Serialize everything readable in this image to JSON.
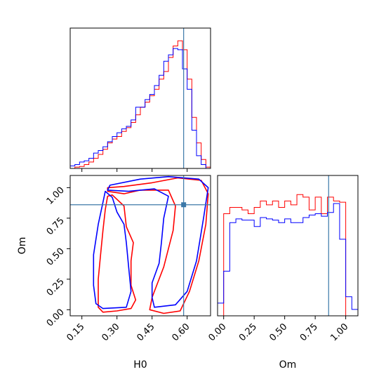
{
  "chart_data": {
    "type": "corner",
    "parameters": [
      "H0",
      "Om"
    ],
    "truth": {
      "H0": 0.585,
      "Om": 0.86
    },
    "colors": {
      "series_a": "#ff0000",
      "series_b": "#0000ff",
      "truth": "#3b78a8"
    },
    "panels": [
      {
        "id": "hist-H0",
        "type": "histogram",
        "xlim": [
          0.1,
          0.7
        ],
        "xticks": [
          0.15,
          0.3,
          0.45,
          0.6
        ],
        "bins": [
          0.1,
          0.12,
          0.14,
          0.16,
          0.18,
          0.2,
          0.22,
          0.24,
          0.26,
          0.28,
          0.3,
          0.32,
          0.34,
          0.36,
          0.38,
          0.4,
          0.42,
          0.44,
          0.46,
          0.48,
          0.5,
          0.52,
          0.54,
          0.56,
          0.58,
          0.6,
          0.62,
          0.64,
          0.66,
          0.68,
          0.7
        ],
        "series": [
          {
            "color": "#ff0000",
            "values": [
              0.0,
              0.01,
              0.015,
              0.03,
              0.05,
              0.08,
              0.11,
              0.15,
              0.2,
              0.23,
              0.25,
              0.29,
              0.32,
              0.36,
              0.42,
              0.48,
              0.52,
              0.57,
              0.62,
              0.7,
              0.76,
              0.87,
              0.96,
              1.0,
              0.93,
              0.7,
              0.4,
              0.2,
              0.07,
              0.01
            ]
          },
          {
            "color": "#0000ff",
            "values": [
              0.02,
              0.03,
              0.05,
              0.06,
              0.08,
              0.12,
              0.14,
              0.17,
              0.21,
              0.25,
              0.28,
              0.31,
              0.33,
              0.38,
              0.48,
              0.48,
              0.54,
              0.58,
              0.65,
              0.73,
              0.84,
              0.89,
              0.94,
              0.93,
              0.78,
              0.62,
              0.3,
              0.1,
              0.03,
              0.0
            ]
          }
        ]
      },
      {
        "id": "contour-H0-Om",
        "type": "contour2d",
        "xlim": [
          0.1,
          0.7
        ],
        "ylim": [
          -0.05,
          1.1
        ],
        "xticks": [
          0.15,
          0.3,
          0.45,
          0.6
        ],
        "yticks": [
          0.0,
          0.25,
          0.5,
          0.75,
          1.0
        ],
        "xlabel": "H0",
        "ylabel": "Om",
        "contours": [
          {
            "color": "#ff0000",
            "points": [
              [
                0.22,
                0.02
              ],
              [
                0.24,
                -0.02
              ],
              [
                0.3,
                -0.01
              ],
              [
                0.36,
                0.01
              ],
              [
                0.38,
                0.08
              ],
              [
                0.36,
                0.2
              ],
              [
                0.36,
                0.4
              ],
              [
                0.37,
                0.55
              ],
              [
                0.34,
                0.68
              ],
              [
                0.33,
                0.85
              ],
              [
                0.28,
                0.94
              ],
              [
                0.26,
                0.93
              ],
              [
                0.25,
                0.82
              ],
              [
                0.24,
                0.65
              ],
              [
                0.23,
                0.45
              ],
              [
                0.22,
                0.25
              ],
              [
                0.22,
                0.02
              ]
            ]
          },
          {
            "color": "#ff0000",
            "points": [
              [
                0.44,
                0.0
              ],
              [
                0.5,
                -0.03
              ],
              [
                0.57,
                -0.01
              ],
              [
                0.61,
                0.15
              ],
              [
                0.65,
                0.4
              ],
              [
                0.68,
                0.7
              ],
              [
                0.69,
                0.95
              ],
              [
                0.66,
                1.06
              ],
              [
                0.56,
                1.08
              ],
              [
                0.45,
                1.04
              ],
              [
                0.33,
                1.01
              ],
              [
                0.26,
                1.0
              ],
              [
                0.26,
                0.97
              ],
              [
                0.33,
                0.95
              ],
              [
                0.4,
                0.98
              ],
              [
                0.52,
                0.98
              ],
              [
                0.55,
                0.85
              ],
              [
                0.54,
                0.65
              ],
              [
                0.52,
                0.5
              ],
              [
                0.5,
                0.35
              ],
              [
                0.47,
                0.2
              ],
              [
                0.45,
                0.1
              ],
              [
                0.44,
                0.0
              ]
            ]
          },
          {
            "color": "#0000ff",
            "points": [
              [
                0.21,
                0.05
              ],
              [
                0.24,
                0.01
              ],
              [
                0.34,
                0.02
              ],
              [
                0.36,
                0.15
              ],
              [
                0.35,
                0.35
              ],
              [
                0.34,
                0.55
              ],
              [
                0.33,
                0.7
              ],
              [
                0.3,
                0.8
              ],
              [
                0.28,
                0.92
              ],
              [
                0.25,
                0.97
              ],
              [
                0.24,
                0.88
              ],
              [
                0.22,
                0.7
              ],
              [
                0.2,
                0.45
              ],
              [
                0.2,
                0.2
              ],
              [
                0.21,
                0.05
              ]
            ]
          },
          {
            "color": "#0000ff",
            "points": [
              [
                0.46,
                0.02
              ],
              [
                0.55,
                0.04
              ],
              [
                0.6,
                0.15
              ],
              [
                0.64,
                0.4
              ],
              [
                0.67,
                0.75
              ],
              [
                0.69,
                1.0
              ],
              [
                0.65,
                1.07
              ],
              [
                0.52,
                1.09
              ],
              [
                0.4,
                1.07
              ],
              [
                0.27,
                1.02
              ],
              [
                0.26,
                0.98
              ],
              [
                0.35,
                0.97
              ],
              [
                0.46,
                0.99
              ],
              [
                0.52,
                0.93
              ],
              [
                0.5,
                0.75
              ],
              [
                0.49,
                0.55
              ],
              [
                0.48,
                0.38
              ],
              [
                0.45,
                0.22
              ],
              [
                0.45,
                0.1
              ],
              [
                0.46,
                0.02
              ]
            ]
          }
        ]
      },
      {
        "id": "hist-Om",
        "type": "histogram",
        "xlim": [
          -0.05,
          1.1
        ],
        "xticks": [
          0.0,
          0.25,
          0.5,
          0.75,
          1.0
        ],
        "xlabel": "Om",
        "bins": [
          -0.05,
          0.0,
          0.05,
          0.1,
          0.15,
          0.2,
          0.25,
          0.3,
          0.35,
          0.4,
          0.45,
          0.5,
          0.55,
          0.6,
          0.65,
          0.7,
          0.75,
          0.8,
          0.85,
          0.9,
          0.95,
          1.0,
          1.05,
          1.1
        ],
        "series": [
          {
            "color": "#ff0000",
            "values": [
              0.0,
              0.8,
              0.85,
              0.85,
              0.83,
              0.8,
              0.85,
              0.9,
              0.87,
              0.9,
              0.85,
              0.9,
              0.87,
              0.95,
              0.93,
              0.83,
              0.93,
              0.8,
              0.93,
              0.9,
              0.89,
              0.0,
              0.0
            ]
          },
          {
            "color": "#0000ff",
            "values": [
              0.1,
              0.35,
              0.73,
              0.76,
              0.75,
              0.75,
              0.7,
              0.77,
              0.76,
              0.75,
              0.73,
              0.76,
              0.73,
              0.73,
              0.77,
              0.79,
              0.8,
              0.78,
              0.81,
              0.88,
              0.6,
              0.15,
              0.05
            ]
          }
        ]
      }
    ]
  }
}
